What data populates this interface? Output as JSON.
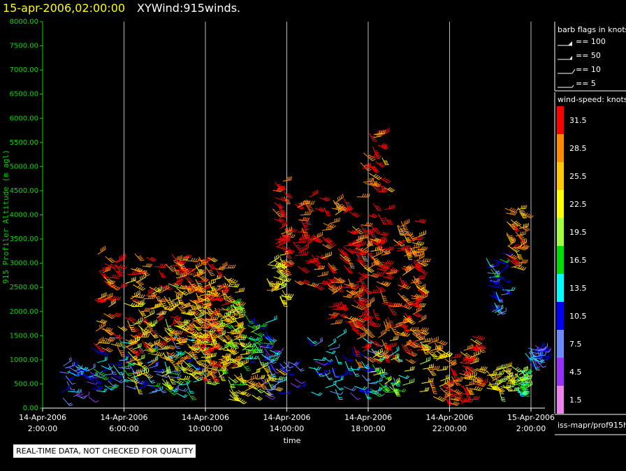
{
  "header": {
    "date_title": "15-apr-2006,02:00:00",
    "main_title": "XYWind:915winds."
  },
  "legend": {
    "barb_title": "barb flags in knots",
    "barb_entries": [
      "== 100",
      "== 50",
      "== 10",
      "== 5"
    ],
    "speed_title": "wind-speed: knots",
    "source_label": "iss-mapr/prof915h"
  },
  "notice": "REAL-TIME DATA, NOT CHECKED FOR QUALITY",
  "colors": {
    "background": "#000000",
    "axis_y": "#00dd00",
    "axis_x": "#ffffff",
    "grid": "#bbbbbb",
    "title_date": "#ffff00"
  },
  "chart_data": {
    "type": "scatter",
    "title": "XYWind:915winds.",
    "xlabel": "time",
    "ylabel": "915 Profiler Altitude (m agl)",
    "ylim": [
      0,
      8000
    ],
    "xlim": [
      "14-Apr-2006 2:00:00",
      "15-Apr-2006 2:00:00"
    ],
    "yticks": [
      "0.00",
      "500.00",
      "1000.00",
      "1500.00",
      "2000.00",
      "2500.00",
      "3000.00",
      "3500.00",
      "4000.00",
      "4500.00",
      "5000.00",
      "5500.00",
      "6000.00",
      "6500.00",
      "7000.00",
      "7500.00",
      "8000.00"
    ],
    "xticks": [
      {
        "date": "14-Apr-2006",
        "time": "2:00:00",
        "hours": 0
      },
      {
        "date": "14-Apr-2006",
        "time": "6:00:00",
        "hours": 4
      },
      {
        "date": "14-Apr-2006",
        "time": "10:00:00",
        "hours": 8
      },
      {
        "date": "14-Apr-2006",
        "time": "14:00:00",
        "hours": 12
      },
      {
        "date": "14-Apr-2006",
        "time": "18:00:00",
        "hours": 16
      },
      {
        "date": "14-Apr-2006",
        "time": "22:00:00",
        "hours": 20
      },
      {
        "date": "15-Apr-2006",
        "time": "2:00:00",
        "hours": 24
      }
    ],
    "grid": true,
    "legend_position": "right",
    "colorbar": {
      "title": "wind-speed: knots",
      "labels": [
        "31.5",
        "28.5",
        "25.5",
        "22.5",
        "19.5",
        "16.5",
        "13.5",
        "10.5",
        "7.5",
        "4.5",
        "1.5"
      ],
      "colors": [
        "#ff0000",
        "#ff8c00",
        "#ffc800",
        "#ffff00",
        "#a0ff40",
        "#00e000",
        "#00ffff",
        "#0000ff",
        "#6a8cff",
        "#9a30ff",
        "#ee82ee"
      ]
    },
    "series": [
      {
        "t0": 0.8,
        "t1": 2.4,
        "h0": 200,
        "h1": 900,
        "kn": 8
      },
      {
        "t0": 2.2,
        "t1": 7.5,
        "h0": 300,
        "h1": 1500,
        "kn": 12
      },
      {
        "t0": 2.5,
        "t1": 8.5,
        "h0": 1200,
        "h1": 3200,
        "kn": 30
      },
      {
        "t0": 4.0,
        "t1": 9.5,
        "h0": 500,
        "h1": 2600,
        "kn": 24
      },
      {
        "t0": 7.0,
        "t1": 9.6,
        "h0": 600,
        "h1": 3000,
        "kn": 27
      },
      {
        "t0": 8.5,
        "t1": 10.0,
        "h0": 400,
        "h1": 2200,
        "kn": 20
      },
      {
        "t0": 9.0,
        "t1": 11.5,
        "h0": 150,
        "h1": 900,
        "kn": 23
      },
      {
        "t0": 9.8,
        "t1": 11.2,
        "h0": 900,
        "h1": 1800,
        "kn": 14
      },
      {
        "t0": 10.5,
        "t1": 12.5,
        "h0": 200,
        "h1": 1300,
        "kn": 9
      },
      {
        "t0": 11.0,
        "t1": 11.8,
        "h0": 2300,
        "h1": 3200,
        "kn": 24
      },
      {
        "t0": 11.3,
        "t1": 12.0,
        "h0": 3000,
        "h1": 4700,
        "kn": 31
      },
      {
        "t0": 12.3,
        "t1": 15.6,
        "h0": 2500,
        "h1": 4400,
        "kn": 31
      },
      {
        "t0": 13.0,
        "t1": 16.5,
        "h0": 300,
        "h1": 1500,
        "kn": 10
      },
      {
        "t0": 14.0,
        "t1": 16.0,
        "h0": 1600,
        "h1": 2500,
        "kn": 31
      },
      {
        "t0": 15.6,
        "t1": 16.9,
        "h0": 2800,
        "h1": 5700,
        "kn": 31
      },
      {
        "t0": 15.0,
        "t1": 18.5,
        "h0": 1000,
        "h1": 3500,
        "kn": 31
      },
      {
        "t0": 16.0,
        "t1": 17.8,
        "h0": 300,
        "h1": 1200,
        "kn": 18
      },
      {
        "t0": 17.3,
        "t1": 18.5,
        "h0": 1200,
        "h1": 3900,
        "kn": 29
      },
      {
        "t0": 18.5,
        "t1": 19.7,
        "h0": 200,
        "h1": 1500,
        "kn": 25
      },
      {
        "t0": 19.6,
        "t1": 21.0,
        "h0": 100,
        "h1": 1100,
        "kn": 31
      },
      {
        "t0": 20.5,
        "t1": 21.4,
        "h0": 400,
        "h1": 1500,
        "kn": 29
      },
      {
        "t0": 21.8,
        "t1": 23.0,
        "h0": 300,
        "h1": 900,
        "kn": 23
      },
      {
        "t0": 23.2,
        "t1": 23.6,
        "h0": 300,
        "h1": 800,
        "kn": 17
      },
      {
        "t0": 21.8,
        "t1": 22.6,
        "h0": 1900,
        "h1": 3300,
        "kn": 12
      },
      {
        "t0": 22.7,
        "t1": 23.5,
        "h0": 2700,
        "h1": 4200,
        "kn": 28
      },
      {
        "t0": 23.7,
        "t1": 24.4,
        "h0": 1000,
        "h1": 1300,
        "kn": 9
      }
    ]
  }
}
